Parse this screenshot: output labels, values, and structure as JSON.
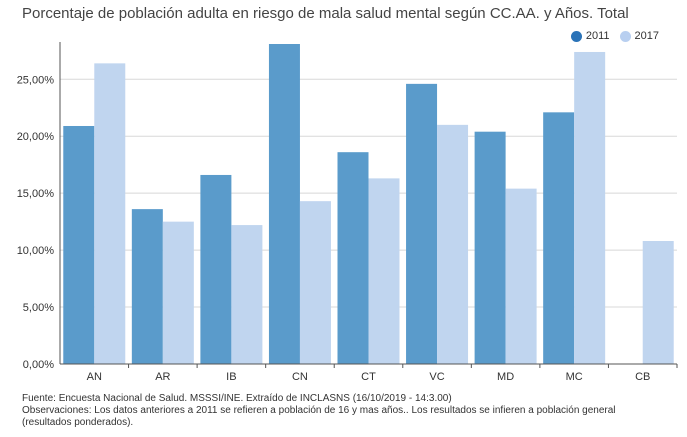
{
  "chart_data": {
    "type": "bar",
    "title": "Porcentaje de población adulta en riesgo de mala salud mental según CC.AA. y Años. Total",
    "xlabel": "",
    "ylabel": "",
    "categories": [
      "AN",
      "AR",
      "IB",
      "CN",
      "CT",
      "VC",
      "MD",
      "MC",
      "CB"
    ],
    "series": [
      {
        "name": "2011",
        "color": "#5a9bcb",
        "values": [
          20.9,
          13.6,
          16.6,
          28.1,
          18.6,
          24.6,
          20.4,
          22.1,
          null
        ]
      },
      {
        "name": "2017",
        "color": "#c0d5ef",
        "values": [
          26.4,
          12.5,
          12.2,
          14.3,
          16.3,
          21.0,
          15.4,
          27.4,
          10.8
        ]
      }
    ],
    "ylim": [
      0,
      28.1
    ],
    "yticks": [
      0,
      5,
      10,
      15,
      20,
      25
    ],
    "ytick_labels": [
      "0,00%",
      "5,00%",
      "10,00%",
      "15,00%",
      "20,00%",
      "25,00%"
    ],
    "grid": true,
    "legend_position": "top-right"
  },
  "footer": {
    "source": "Fuente: Encuesta Nacional de Salud. MSSSI/INE. Extraído de INCLASNS (16/10/2019 - 14:3.00)",
    "observations": "Observaciones: Los datos anteriores a 2011 se refieren a población de 16 y mas años.. Los resultados se infieren a población general (resultados ponderados)."
  }
}
